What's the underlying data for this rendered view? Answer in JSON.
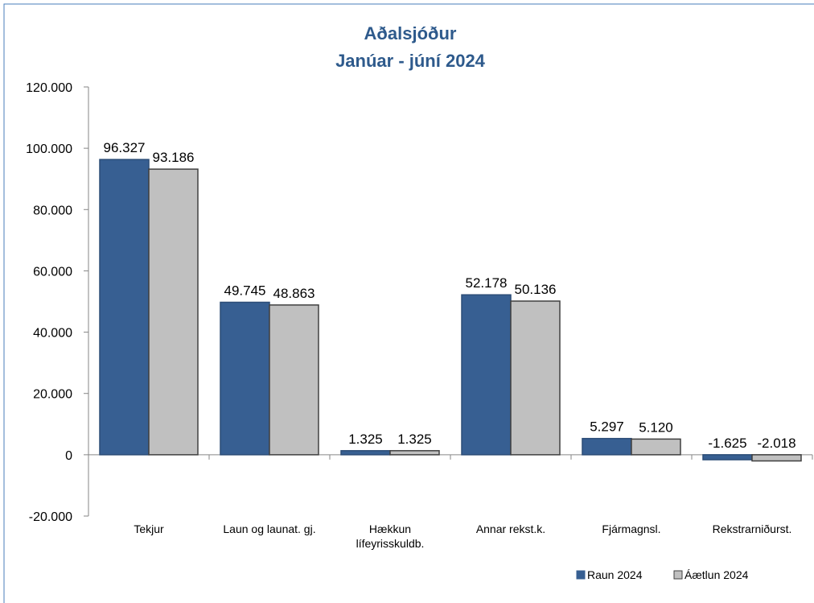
{
  "chart_data": {
    "type": "bar",
    "title": "Aðalsjóður",
    "subtitle": "Janúar - júní 2024",
    "categories": [
      "Tekjur",
      "Laun og launat. gj.",
      "Hækkun lífeyrisskuldb.",
      "Annar rekst.k.",
      "Fjármagnsl.",
      "Rekstrarniðurst."
    ],
    "series": [
      {
        "name": "Raun 2024",
        "color": "#375f92",
        "values": [
          96327,
          49745,
          1325,
          52178,
          5297,
          -1625
        ],
        "value_labels": [
          "96.327",
          "49.745",
          "1.325",
          "52.178",
          "5.297",
          "-1.625"
        ]
      },
      {
        "name": "Áætlun 2024",
        "color": "#c0c0c0",
        "values": [
          93186,
          48863,
          1325,
          50136,
          5120,
          -2018
        ],
        "value_labels": [
          "93.186",
          "48.863",
          "1.325",
          "50.136",
          "5.120",
          "-2.018"
        ]
      }
    ],
    "ylim": [
      -20000,
      120000
    ],
    "yticks": [
      {
        "value": -20000,
        "label": "-20.000"
      },
      0,
      {
        "value": 20000,
        "label": "20.000"
      },
      {
        "value": 40000,
        "label": "40.000"
      },
      {
        "value": 60000,
        "label": "60.000"
      },
      {
        "value": 80000,
        "label": "80.000"
      },
      {
        "value": 100000,
        "label": "100.000"
      },
      {
        "value": 120000,
        "label": "120.000"
      }
    ],
    "grid": false,
    "legend": "bottom-right"
  }
}
